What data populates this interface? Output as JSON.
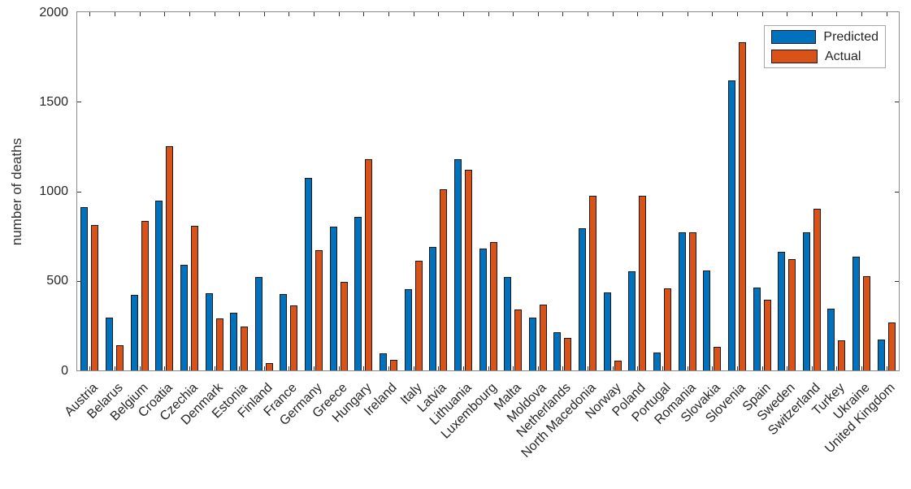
{
  "figure": {
    "ylabel": "number of deaths"
  },
  "chart_data": {
    "type": "bar",
    "title": "",
    "xlabel": "",
    "ylabel": "number of deaths",
    "ylim": [
      0,
      2000
    ],
    "yticks": [
      0,
      500,
      1000,
      1500,
      2000
    ],
    "grid": false,
    "legend_position": "top-right",
    "categories": [
      "Austria",
      "Belarus",
      "Belgium",
      "Croatia",
      "Czechia",
      "Denmark",
      "Estonia",
      "Finland",
      "France",
      "Germany",
      "Greece",
      "Hungary",
      "Ireland",
      "Italy",
      "Latvia",
      "Lithuania",
      "Luxembourg",
      "Malta",
      "Moldova",
      "Netherlands",
      "North Macedonia",
      "Norway",
      "Poland",
      "Portugal",
      "Romania",
      "Slovakia",
      "Slovenia",
      "Spain",
      "Sweden",
      "Switzerland",
      "Turkey",
      "Ukraine",
      "United Kingdom"
    ],
    "series": [
      {
        "name": "Predicted",
        "color": "#0072BD",
        "values": [
          910,
          295,
          420,
          950,
          590,
          430,
          320,
          522,
          425,
          1073,
          803,
          858,
          95,
          452,
          691,
          1177,
          680,
          521,
          295,
          215,
          795,
          435,
          553,
          100,
          770,
          559,
          1620,
          464,
          661,
          773,
          344,
          636,
          171
        ]
      },
      {
        "name": "Actual",
        "color": "#D95319",
        "values": [
          810,
          140,
          835,
          1250,
          805,
          292,
          245,
          42,
          362,
          670,
          493,
          1180,
          61,
          612,
          1011,
          1122,
          718,
          342,
          368,
          182,
          976,
          53,
          977,
          460,
          773,
          133,
          1830,
          394,
          621,
          903,
          167,
          526,
          267
        ]
      }
    ]
  }
}
